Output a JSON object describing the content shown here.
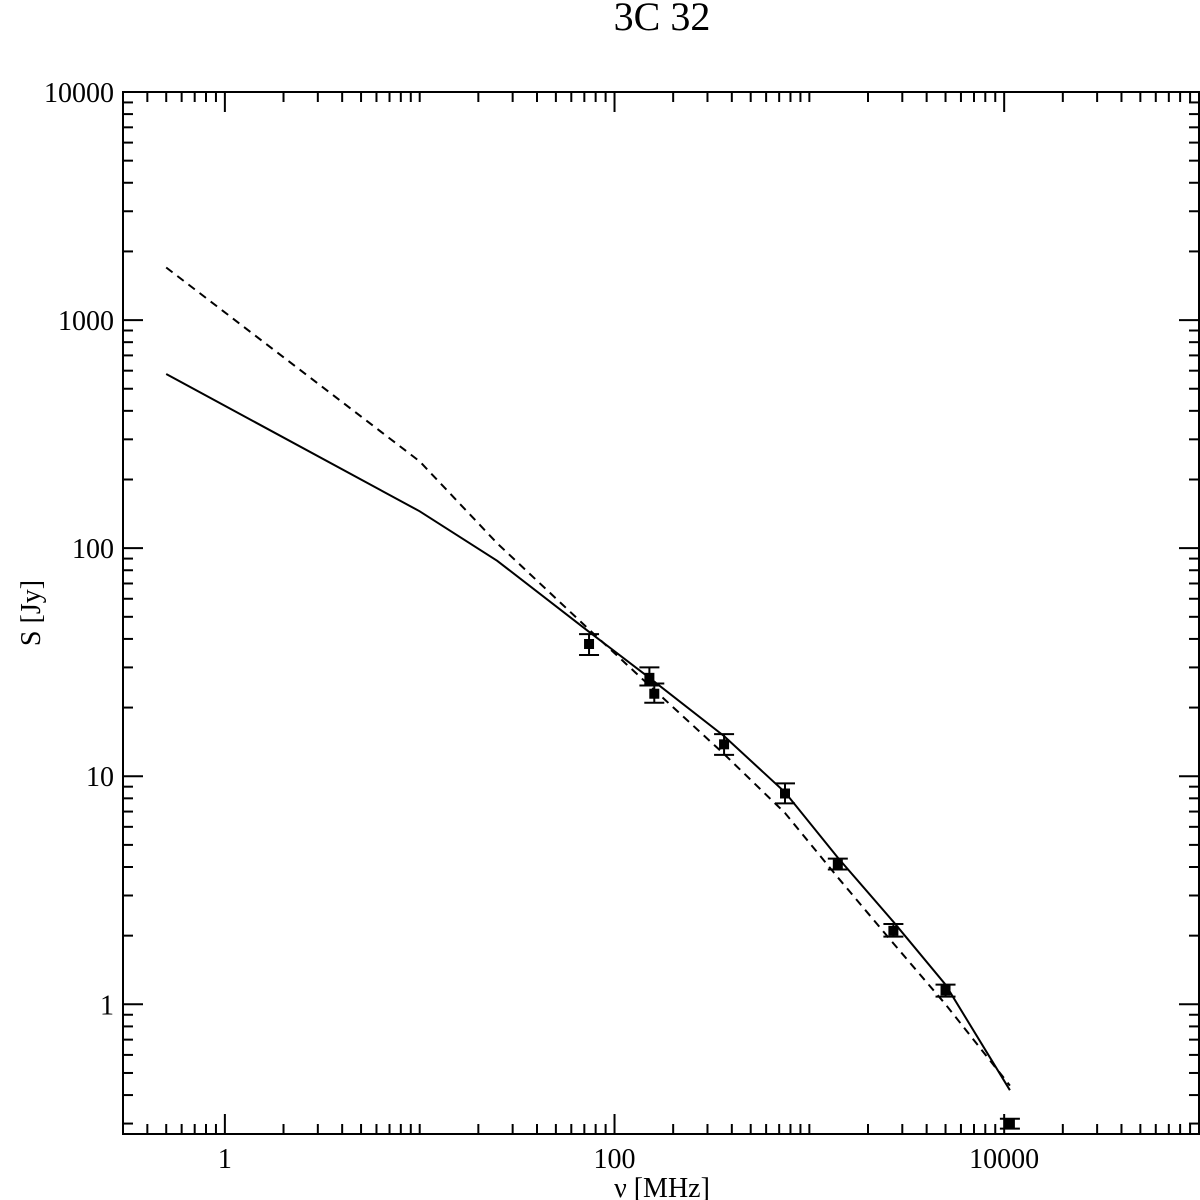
{
  "chart_data": {
    "type": "scatter",
    "title": "3C 32",
    "xlabel": "ν [MHz]",
    "ylabel": "S [Jy]",
    "xscale": "log",
    "yscale": "log",
    "xlim": [
      0.3,
      100000
    ],
    "ylim": [
      0.27,
      10000
    ],
    "x_ticks": [
      {
        "value": 1,
        "label": "1"
      },
      {
        "value": 100,
        "label": "100"
      },
      {
        "value": 10000,
        "label": "10000"
      }
    ],
    "y_ticks": [
      {
        "value": 1,
        "label": "1"
      },
      {
        "value": 10,
        "label": "10"
      },
      {
        "value": 100,
        "label": "100"
      },
      {
        "value": 1000,
        "label": "1000"
      },
      {
        "value": 10000,
        "label": "10000"
      }
    ],
    "grid": false,
    "legend": "none",
    "points": [
      {
        "x": 74,
        "y": 38,
        "yerr_low": 34,
        "yerr_high": 42
      },
      {
        "x": 151,
        "y": 27,
        "yerr_low": 25,
        "yerr_high": 30
      },
      {
        "x": 160,
        "y": 23,
        "yerr_low": 21,
        "yerr_high": 25.5
      },
      {
        "x": 365,
        "y": 13.8,
        "yerr_low": 12.4,
        "yerr_high": 15.3
      },
      {
        "x": 750,
        "y": 8.4,
        "yerr_low": 7.6,
        "yerr_high": 9.3
      },
      {
        "x": 1400,
        "y": 4.1,
        "yerr_low": 3.9,
        "yerr_high": 4.35
      },
      {
        "x": 2700,
        "y": 2.1,
        "yerr_low": 1.98,
        "yerr_high": 2.25
      },
      {
        "x": 5000,
        "y": 1.15,
        "yerr_low": 1.08,
        "yerr_high": 1.22
      },
      {
        "x": 10700,
        "y": 0.3,
        "yerr_low": 0.285,
        "yerr_high": 0.315
      }
    ],
    "series": [
      {
        "style": "solid",
        "x": [
          0.5,
          10,
          25,
          74,
          151,
          365,
          750,
          1400,
          2700,
          5000,
          10700
        ],
        "y": [
          580,
          145,
          88,
          43,
          27,
          15,
          8.5,
          4.4,
          2.3,
          1.22,
          0.42
        ]
      },
      {
        "style": "dashed",
        "x": [
          0.5,
          10,
          25,
          74,
          151,
          365,
          750,
          1400,
          2700,
          5000,
          10700
        ],
        "y": [
          1700,
          240,
          105,
          44,
          25,
          12.5,
          6.9,
          3.6,
          1.85,
          1.0,
          0.44
        ]
      }
    ]
  }
}
